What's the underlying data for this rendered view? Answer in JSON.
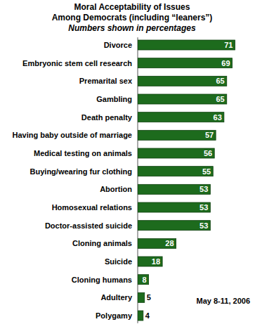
{
  "chart_data": {
    "type": "bar",
    "orientation": "horizontal",
    "title": "Moral Acceptability of Issues",
    "subtitle": "Among Democrats (including “leaners”)",
    "annotations": [
      "Numbers shown in percentages",
      "May 8-11, 2006"
    ],
    "categories": [
      "Divorce",
      "Embryonic stem cell research",
      "Premarital sex",
      "Gambling",
      "Death penalty",
      "Having baby outside of marriage",
      "Medical testing on animals",
      "Buying/wearing fur clothing",
      "Abortion",
      "Homosexual relations",
      "Doctor-assisted suicide",
      "Cloning animals",
      "Suicide",
      "Cloning humans",
      "Adultery",
      "Polygamy"
    ],
    "values": [
      71,
      69,
      65,
      65,
      63,
      57,
      56,
      55,
      53,
      53,
      53,
      28,
      18,
      8,
      5,
      4
    ],
    "color": "#1d6b1d",
    "xlim": [
      0,
      80
    ],
    "data_labels": true,
    "tick_labels": false,
    "grid": false
  }
}
